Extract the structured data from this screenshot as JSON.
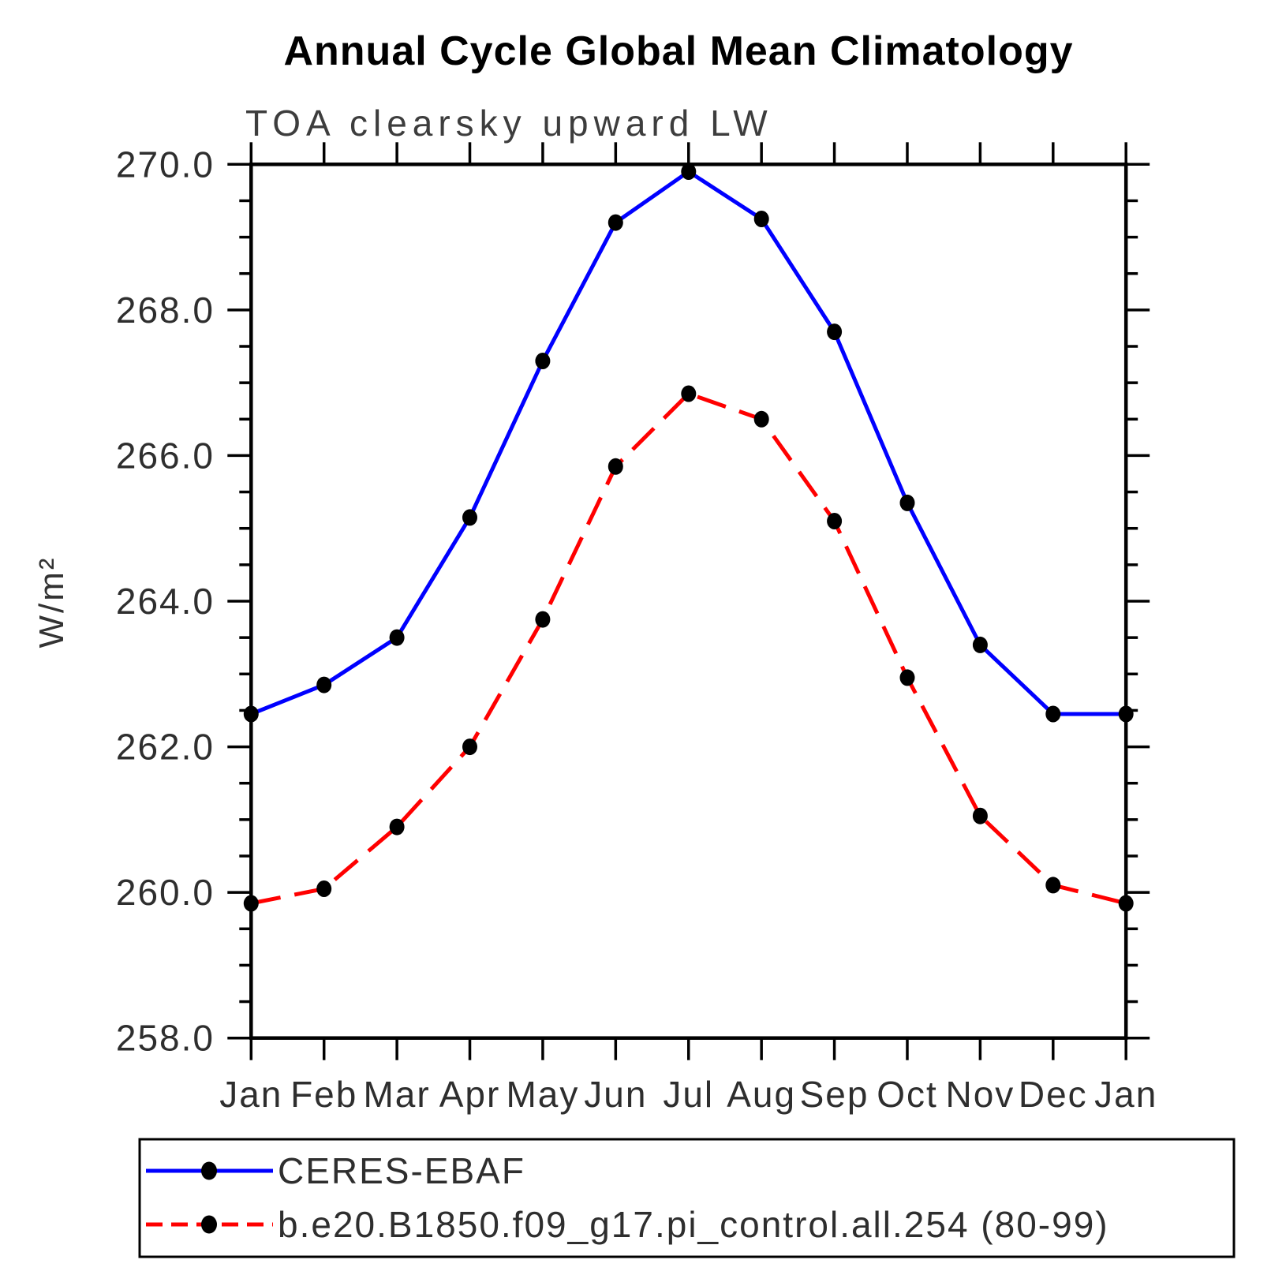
{
  "title": "Annual Cycle Global Mean Climatology",
  "subtitle": "TOA clearsky upward LW",
  "y_axis_title": "W/m²",
  "chart_data": {
    "type": "line",
    "title": "Annual Cycle Global Mean Climatology",
    "subtitle": "TOA clearsky upward LW",
    "xlabel": "",
    "ylabel": "W/m²",
    "x_categories": [
      "Jan",
      "Feb",
      "Mar",
      "Apr",
      "May",
      "Jun",
      "Jul",
      "Aug",
      "Sep",
      "Oct",
      "Nov",
      "Dec",
      "Jan"
    ],
    "ylim": [
      258.0,
      270.0
    ],
    "ytick_labels": [
      "258.0",
      "260.0",
      "262.0",
      "264.0",
      "266.0",
      "268.0",
      "270.0"
    ],
    "ytick_interval": 2.0,
    "ytick_minor_interval": 0.5,
    "grid": false,
    "legend_position": "bottom-left-box",
    "series": [
      {
        "name": "CERES-EBAF",
        "color": "#0000ff",
        "line_style": "solid",
        "marker": "filled-circle",
        "marker_color": "#000000",
        "values": [
          262.45,
          262.85,
          263.5,
          265.15,
          267.3,
          269.2,
          269.9,
          269.25,
          267.7,
          265.35,
          263.4,
          262.45,
          262.45
        ]
      },
      {
        "name": "b.e20.B1850.f09_g17.pi_control.all.254 (80-99)",
        "color": "#ff0000",
        "line_style": "dashed",
        "marker": "filled-circle",
        "marker_color": "#000000",
        "values": [
          259.85,
          260.05,
          260.9,
          262.0,
          263.75,
          265.85,
          266.85,
          266.5,
          265.1,
          262.95,
          261.05,
          260.1,
          259.85
        ]
      }
    ]
  },
  "colors": {
    "background": "#ffffff",
    "axis": "#000000",
    "title": "#000000",
    "subtitle": "#3d3d3d",
    "tick_label": "#2e2e2e",
    "ceres_line": "#0000ff",
    "model_line": "#ff0000",
    "marker": "#000000",
    "legend_border": "#000000"
  }
}
